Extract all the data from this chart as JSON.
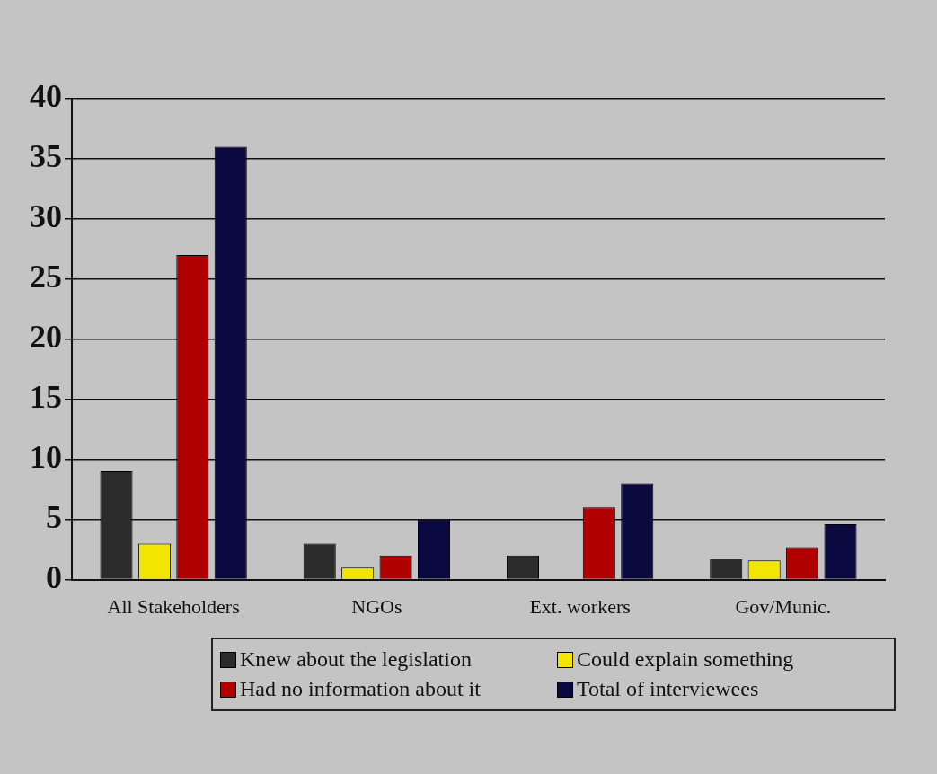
{
  "chart_data": {
    "type": "bar",
    "categories": [
      "All Stakeholders",
      "NGOs",
      "Ext. workers",
      "Gov/Munic."
    ],
    "series": [
      {
        "name": "Knew about the legislation",
        "color": "#2b2b2b",
        "values": [
          9,
          3,
          2,
          1.7
        ]
      },
      {
        "name": "Could explain something",
        "color": "#f2e600",
        "values": [
          3,
          1,
          null,
          1.6
        ]
      },
      {
        "name": "Had no information about it",
        "color": "#b00000",
        "values": [
          27,
          2,
          6,
          2.7
        ]
      },
      {
        "name": "Total of interviewees",
        "color": "#0a0a40",
        "values": [
          36,
          5,
          8,
          4.6
        ]
      }
    ],
    "ylim": [
      0,
      40
    ],
    "yticks": [
      0,
      5,
      10,
      15,
      20,
      25,
      30,
      35,
      40
    ],
    "grid": "y",
    "legend": "bottom"
  }
}
